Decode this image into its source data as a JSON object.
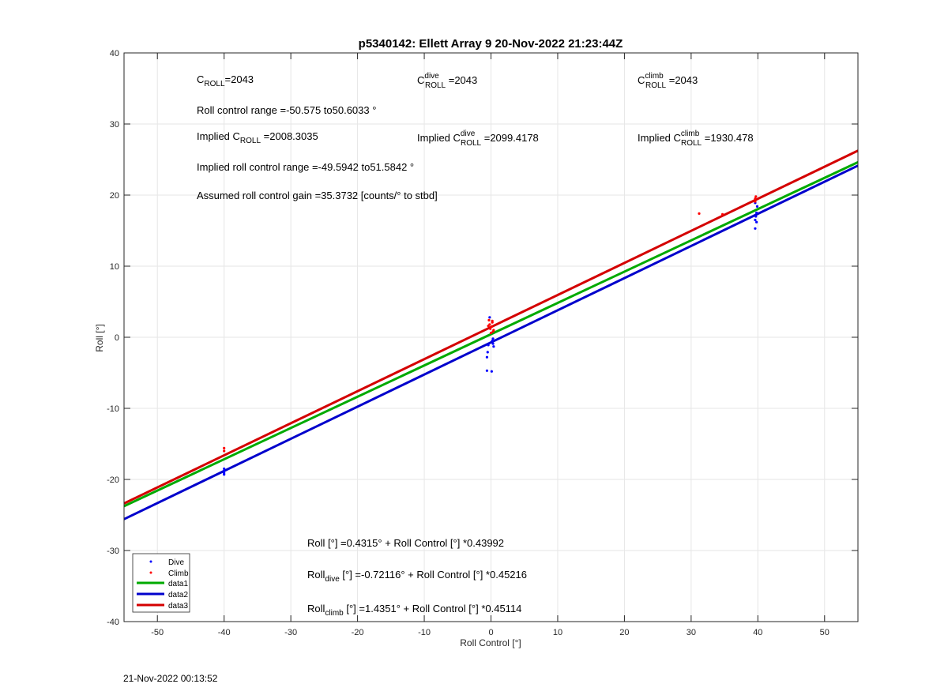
{
  "chart_data": {
    "type": "scatter",
    "title": "p5340142: Ellett Array 9 20-Nov-2022 21:23:44Z",
    "xlabel": "Roll Control [°]",
    "ylabel": "Roll [°]",
    "xlim": [
      -55,
      55
    ],
    "ylim": [
      -40,
      40
    ],
    "xticks": [
      -50,
      -40,
      -30,
      -20,
      -10,
      0,
      10,
      20,
      30,
      40,
      50
    ],
    "yticks": [
      -40,
      -30,
      -20,
      -10,
      0,
      10,
      20,
      30,
      40
    ],
    "grid": true,
    "legend_position": "bottom-left",
    "series": [
      {
        "name": "Dive",
        "kind": "points",
        "color": "#0000ff",
        "x": [
          -40,
          -40,
          -40,
          -40,
          -0.6,
          -0.6,
          -0.5,
          -0.4,
          0.2,
          0.3,
          0.4,
          0.1,
          -0.2,
          0.3,
          39.6,
          39.6,
          39.7,
          39.8,
          39.9,
          39.6,
          39.8
        ],
        "y": [
          -18.5,
          -18.8,
          -19.1,
          -19.3,
          -4.7,
          -2.8,
          -2.1,
          -1.1,
          -0.5,
          -0.9,
          -1.3,
          -4.8,
          2.8,
          -0.2,
          15.3,
          16.5,
          17.0,
          17.5,
          18.4,
          18.9,
          16.2
        ]
      },
      {
        "name": "Climb",
        "kind": "points",
        "color": "#ff0000",
        "x": [
          -40,
          -40,
          -0.3,
          -0.2,
          -0.1,
          0.1,
          0.2,
          0.3,
          0.4,
          -0.4,
          0.0,
          0.2,
          31.2,
          34.7,
          39.6,
          39.6,
          39.7
        ],
        "y": [
          -15.6,
          -16.0,
          2.4,
          1.8,
          1.2,
          1.5,
          2.1,
          0.8,
          1.0,
          1.6,
          0.6,
          2.3,
          17.4,
          17.3,
          19.5,
          19.1,
          19.8
        ]
      },
      {
        "name": "data1",
        "kind": "line",
        "color": "#00aa00",
        "intercept": 0.4315,
        "slope": 0.43992
      },
      {
        "name": "data2",
        "kind": "line",
        "color": "#0000cc",
        "intercept": -0.72116,
        "slope": 0.45216
      },
      {
        "name": "data3",
        "kind": "line",
        "color": "#d40000",
        "intercept": 1.4351,
        "slope": 0.45114
      }
    ]
  },
  "annotations": {
    "c_roll": {
      "c": "C",
      "sub": "ROLL",
      "val": "=2043"
    },
    "c_roll_dive": {
      "c": "C",
      "sup": "dive",
      "sub": "ROLL",
      "val": " =2043"
    },
    "c_roll_climb": {
      "c": "C",
      "sup": "climb",
      "sub": "ROLL",
      "val": " =2043"
    },
    "roll_control_range": "Roll control range =-50.575 to50.6033 °",
    "implied_c_roll": {
      "pre": "Implied C",
      "sub": "ROLL",
      "val": " =2008.3035"
    },
    "implied_c_roll_dive": {
      "pre": "Implied C",
      "sup": "dive",
      "sub": "ROLL",
      "val": " =2099.4178"
    },
    "implied_c_roll_climb": {
      "pre": "Implied C",
      "sup": "climb",
      "sub": "ROLL",
      "val": " =1930.478"
    },
    "implied_range": "Implied roll control range =-49.5942 to51.5842 °",
    "assumed_gain": "Assumed roll control gain =35.3732 [counts/° to stbd]",
    "eq_all": "Roll [°] =0.4315° + Roll Control [°] *0.43992",
    "eq_dive": {
      "pre": "Roll",
      "sub": "dive",
      "post": " [°] =-0.72116° + Roll Control [°] *0.45216"
    },
    "eq_climb": {
      "pre": "Roll",
      "sub": "climb",
      "post": " [°] =1.4351° + Roll Control [°] *0.45114"
    }
  },
  "timestamp": "21-Nov-2022 00:13:52"
}
